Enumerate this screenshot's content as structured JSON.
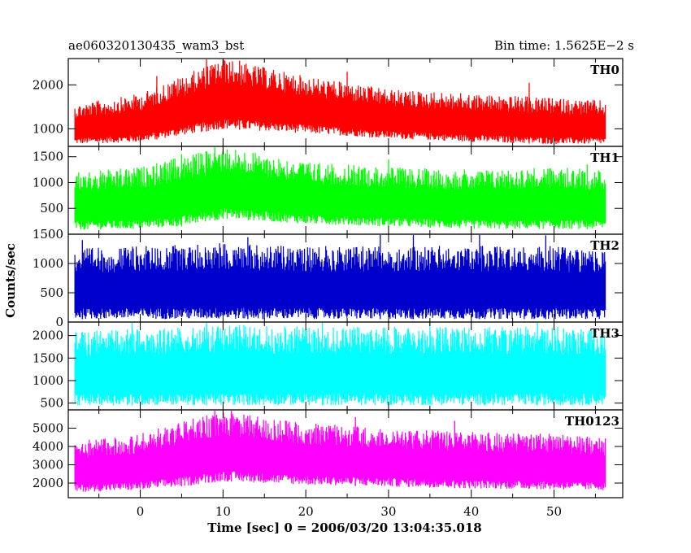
{
  "header": {
    "title": "ae060320130435_wam3_bst",
    "bin_time": "Bin time: 1.5625E−2 s"
  },
  "chart_data": {
    "type": "line",
    "xlabel": "Time [sec] 0 = 2006/03/20 13:04:35.018",
    "ylabel": "Counts/sec",
    "xlim": [
      -8.7,
      58.3
    ],
    "x_ticks": [
      0,
      10,
      20,
      30,
      40,
      50
    ],
    "x_tick_labels": [
      "0",
      "10",
      "20",
      "30",
      "40",
      "50"
    ],
    "data_x_range": [
      -7.9,
      56.2
    ],
    "panels": [
      {
        "name": "TH0",
        "color": "#ff0000",
        "ylim": [
          600,
          2600
        ],
        "y_ticks": [
          1000,
          2000
        ],
        "y_tick_labels": [
          "1000",
          "2000"
        ],
        "envelope": {
          "t": [
            -8,
            0,
            5,
            10,
            15,
            20,
            30,
            40,
            50,
            56
          ],
          "low": [
            650,
            700,
            850,
            1000,
            950,
            900,
            780,
            700,
            650,
            650
          ],
          "high": [
            1550,
            1800,
            2200,
            2600,
            2400,
            2200,
            1900,
            1800,
            1700,
            1650
          ]
        },
        "spikes": [
          [
            8,
            2600
          ],
          [
            10,
            2600
          ],
          [
            12,
            2550
          ],
          [
            2,
            2200
          ],
          [
            25,
            2300
          ],
          [
            47,
            2050
          ]
        ]
      },
      {
        "name": "TH1",
        "color": "#00ff00",
        "ylim": [
          0,
          1700
        ],
        "y_ticks": [
          500,
          1000,
          1500
        ],
        "y_tick_labels": [
          "500",
          "1000",
          "1500"
        ],
        "envelope": {
          "t": [
            -8,
            0,
            5,
            10,
            15,
            20,
            30,
            40,
            50,
            56
          ],
          "low": [
            80,
            100,
            150,
            300,
            250,
            200,
            150,
            100,
            100,
            100
          ],
          "high": [
            1200,
            1300,
            1500,
            1700,
            1550,
            1400,
            1300,
            1250,
            1300,
            1250
          ]
        },
        "spikes": [
          [
            9,
            1700
          ],
          [
            10,
            1650
          ],
          [
            5,
            1550
          ],
          [
            30,
            1450
          ],
          [
            54,
            1350
          ]
        ]
      },
      {
        "name": "TH2",
        "color": "#0000cc",
        "ylim": [
          0,
          1500
        ],
        "y_ticks": [
          0,
          500,
          1000,
          1500
        ],
        "y_tick_labels": [
          "0",
          "500",
          "1000",
          "1500"
        ],
        "envelope": {
          "t": [
            -8,
            0,
            10,
            20,
            30,
            40,
            50,
            56
          ],
          "low": [
            50,
            50,
            50,
            50,
            50,
            50,
            50,
            50
          ],
          "high": [
            1250,
            1300,
            1350,
            1300,
            1300,
            1300,
            1300,
            1250
          ]
        },
        "spikes": [
          [
            -7,
            1400
          ],
          [
            13,
            1450
          ],
          [
            29,
            1500
          ],
          [
            33,
            1500
          ],
          [
            41,
            1500
          ],
          [
            49,
            1480
          ]
        ]
      },
      {
        "name": "TH3",
        "color": "#00ffff",
        "ylim": [
          350,
          2300
        ],
        "y_ticks": [
          500,
          1000,
          1500,
          2000
        ],
        "y_tick_labels": [
          "500",
          "1000",
          "1500",
          "2000"
        ],
        "envelope": {
          "t": [
            -8,
            0,
            10,
            20,
            30,
            40,
            50,
            56
          ],
          "low": [
            450,
            450,
            450,
            450,
            450,
            450,
            450,
            450
          ],
          "high": [
            2100,
            2150,
            2250,
            2200,
            2200,
            2200,
            2200,
            2150
          ]
        },
        "spikes": [
          [
            -1,
            2300
          ],
          [
            8,
            2300
          ],
          [
            22,
            2300
          ],
          [
            35,
            2300
          ],
          [
            48,
            2300
          ]
        ]
      },
      {
        "name": "TH0123",
        "color": "#ff00ff",
        "ylim": [
          1200,
          6000
        ],
        "y_ticks": [
          2000,
          3000,
          4000,
          5000
        ],
        "y_tick_labels": [
          "2000",
          "3000",
          "4000",
          "5000"
        ],
        "envelope": {
          "t": [
            -8,
            0,
            5,
            10,
            15,
            20,
            30,
            40,
            50,
            56
          ],
          "low": [
            1500,
            1600,
            1800,
            2100,
            2000,
            1900,
            1800,
            1700,
            1650,
            1600
          ],
          "high": [
            4300,
            4700,
            5400,
            5900,
            5600,
            5300,
            5000,
            4800,
            4700,
            4500
          ]
        },
        "spikes": [
          [
            9,
            6000
          ],
          [
            11,
            5950
          ],
          [
            26,
            5600
          ],
          [
            38,
            5400
          ]
        ]
      }
    ]
  }
}
